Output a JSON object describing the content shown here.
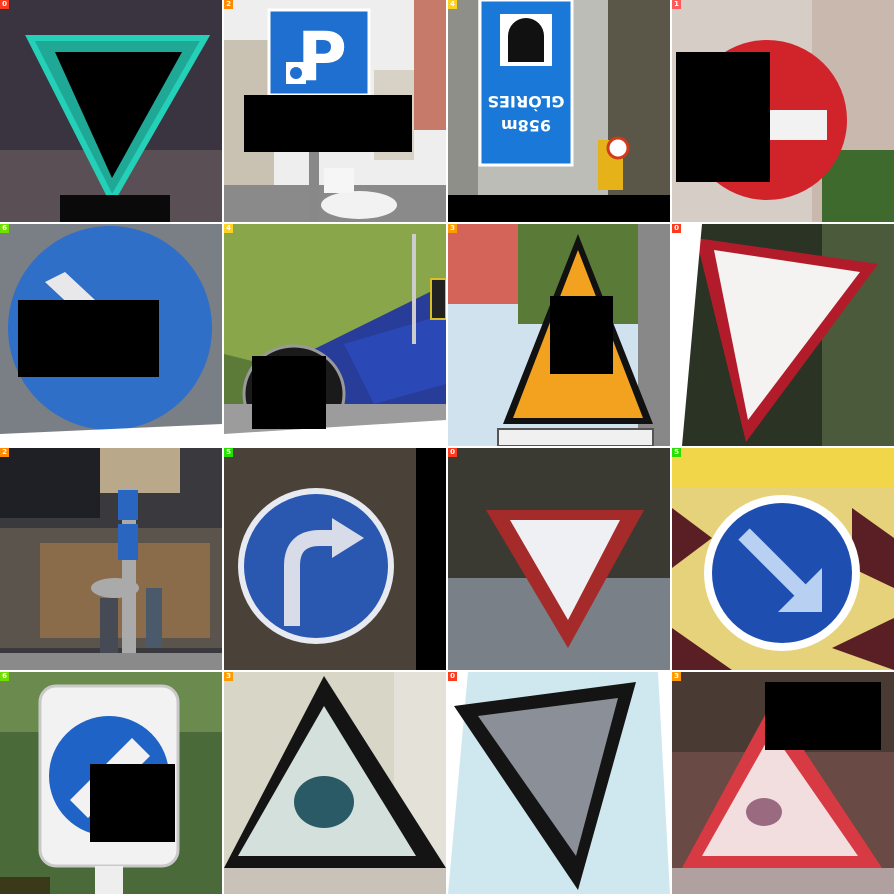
{
  "grid": {
    "rows": 4,
    "cols": 4
  },
  "tiles": [
    {
      "id": "t0",
      "badge": "0",
      "badge_color": "#ff3b1f",
      "subject": "green-outlined yield triangle, processed colors"
    },
    {
      "id": "t1",
      "badge": "2",
      "badge_color": "#ff8a00",
      "subject": "blue parking sign with wheelchair symbol",
      "sign_text": "P"
    },
    {
      "id": "t2",
      "badge": "4",
      "badge_color": "#ffd21f",
      "subject": "blue tunnel sign",
      "sign_text_line1": "GLÒRIES",
      "sign_text_line2": "958m"
    },
    {
      "id": "t3",
      "badge": "1",
      "badge_color": "#ff5a5a",
      "subject": "red no-entry sign"
    },
    {
      "id": "t4",
      "badge": "6",
      "badge_color": "#6fe000",
      "subject": "blue round keep-left sign"
    },
    {
      "id": "t5",
      "badge": "4",
      "badge_color": "#ffd21f",
      "subject": "tunnel entrance hillside, tunnel sign"
    },
    {
      "id": "t6",
      "badge": "3",
      "badge_color": "#ff9a00",
      "subject": "yellow children-crossing warning triangle"
    },
    {
      "id": "t7",
      "badge": "0",
      "badge_color": "#ff3b1f",
      "subject": "white yield triangle, red border"
    },
    {
      "id": "t8",
      "badge": "2",
      "badge_color": "#ff8a00",
      "subject": "street with blue parking signs and pedestrians"
    },
    {
      "id": "t9",
      "badge": "5",
      "badge_color": "#28e000",
      "subject": "blue turn-right mandatory sign"
    },
    {
      "id": "t10",
      "badge": "0",
      "badge_color": "#ff3b1f",
      "subject": "yield triangle, low resolution"
    },
    {
      "id": "t11",
      "badge": "5",
      "badge_color": "#28e000",
      "subject": "blue keep-right arrow sign, noisy"
    },
    {
      "id": "t12",
      "badge": "6",
      "badge_color": "#6fe000",
      "subject": "blue keep-left sign on white plate"
    },
    {
      "id": "t13",
      "badge": "3",
      "badge_color": "#ff9a00",
      "subject": "warning triangle, blurry"
    },
    {
      "id": "t14",
      "badge": "0",
      "badge_color": "#ff3b1f",
      "subject": "dark yield triangle on light blue, rotated"
    },
    {
      "id": "t15",
      "badge": "3",
      "badge_color": "#ff9a00",
      "subject": "red warning triangle, blurry"
    }
  ]
}
